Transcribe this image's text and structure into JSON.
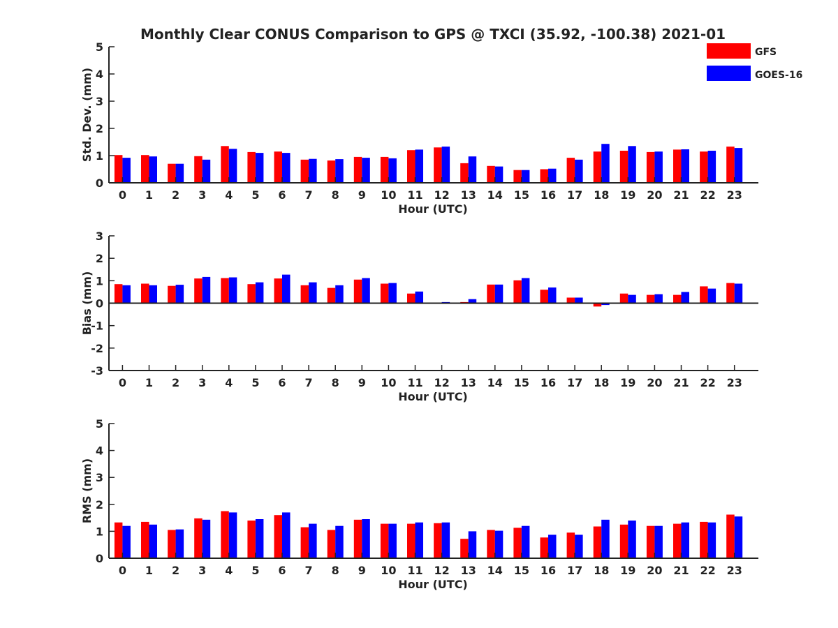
{
  "title": "Monthly Clear CONUS Comparison to GPS @ TXCI (35.92, -100.38) 2021-01",
  "legend": [
    {
      "name": "GFS",
      "color": "#ff0000"
    },
    {
      "name": "GOES-16",
      "color": "#0000ff"
    }
  ],
  "chart_data": [
    {
      "type": "bar",
      "xlabel": "Hour (UTC)",
      "ylabel": "Std. Dev. (mm)",
      "ylim": [
        0,
        5
      ],
      "yticks": [
        0,
        1,
        2,
        3,
        4,
        5
      ],
      "categories": [
        "0",
        "1",
        "2",
        "3",
        "4",
        "5",
        "6",
        "7",
        "8",
        "9",
        "10",
        "11",
        "12",
        "13",
        "14",
        "15",
        "16",
        "17",
        "18",
        "19",
        "20",
        "21",
        "22",
        "23"
      ],
      "series": [
        {
          "name": "GFS",
          "color": "#ff0000",
          "values": [
            1.02,
            1.02,
            0.7,
            0.98,
            1.35,
            1.13,
            1.15,
            0.85,
            0.82,
            0.95,
            0.95,
            1.2,
            1.3,
            0.72,
            0.62,
            0.47,
            0.5,
            0.92,
            1.15,
            1.18,
            1.13,
            1.22,
            1.15,
            1.33
          ]
        },
        {
          "name": "GOES-16",
          "color": "#0000ff",
          "values": [
            0.92,
            0.97,
            0.7,
            0.85,
            1.25,
            1.1,
            1.1,
            0.88,
            0.87,
            0.92,
            0.9,
            1.22,
            1.33,
            0.97,
            0.6,
            0.47,
            0.52,
            0.85,
            1.43,
            1.35,
            1.15,
            1.23,
            1.18,
            1.28
          ]
        }
      ]
    },
    {
      "type": "bar",
      "xlabel": "Hour (UTC)",
      "ylabel": "Bias (mm)",
      "ylim": [
        -3,
        3
      ],
      "yticks": [
        -3,
        -2,
        -1,
        0,
        1,
        2,
        3
      ],
      "categories": [
        "0",
        "1",
        "2",
        "3",
        "4",
        "5",
        "6",
        "7",
        "8",
        "9",
        "10",
        "11",
        "12",
        "13",
        "14",
        "15",
        "16",
        "17",
        "18",
        "19",
        "20",
        "21",
        "22",
        "23"
      ],
      "series": [
        {
          "name": "GFS",
          "color": "#ff0000",
          "values": [
            0.85,
            0.87,
            0.77,
            1.1,
            1.12,
            0.85,
            1.1,
            0.8,
            0.68,
            1.05,
            0.87,
            0.43,
            0.03,
            0.05,
            0.83,
            1.02,
            0.6,
            0.25,
            -0.15,
            0.43,
            0.37,
            0.37,
            0.75,
            0.9
          ]
        },
        {
          "name": "GOES-16",
          "color": "#0000ff",
          "values": [
            0.8,
            0.8,
            0.82,
            1.17,
            1.15,
            0.93,
            1.27,
            0.93,
            0.8,
            1.12,
            0.9,
            0.52,
            0.05,
            0.18,
            0.83,
            1.12,
            0.7,
            0.25,
            -0.08,
            0.37,
            0.4,
            0.5,
            0.65,
            0.87
          ]
        }
      ]
    },
    {
      "type": "bar",
      "xlabel": "Hour (UTC)",
      "ylabel": "RMS (mm)",
      "ylim": [
        0,
        5
      ],
      "yticks": [
        0,
        1,
        2,
        3,
        4,
        5
      ],
      "categories": [
        "0",
        "1",
        "2",
        "3",
        "4",
        "5",
        "6",
        "7",
        "8",
        "9",
        "10",
        "11",
        "12",
        "13",
        "14",
        "15",
        "16",
        "17",
        "18",
        "19",
        "20",
        "21",
        "22",
        "23"
      ],
      "series": [
        {
          "name": "GFS",
          "color": "#ff0000",
          "values": [
            1.33,
            1.35,
            1.05,
            1.48,
            1.75,
            1.4,
            1.6,
            1.15,
            1.05,
            1.43,
            1.28,
            1.28,
            1.3,
            0.72,
            1.05,
            1.13,
            0.77,
            0.95,
            1.18,
            1.25,
            1.2,
            1.28,
            1.35,
            1.62
          ]
        },
        {
          "name": "GOES-16",
          "color": "#0000ff",
          "values": [
            1.2,
            1.25,
            1.07,
            1.43,
            1.7,
            1.45,
            1.7,
            1.28,
            1.2,
            1.45,
            1.28,
            1.33,
            1.33,
            1.0,
            1.02,
            1.2,
            0.87,
            0.87,
            1.43,
            1.4,
            1.2,
            1.33,
            1.33,
            1.55
          ]
        }
      ]
    }
  ]
}
